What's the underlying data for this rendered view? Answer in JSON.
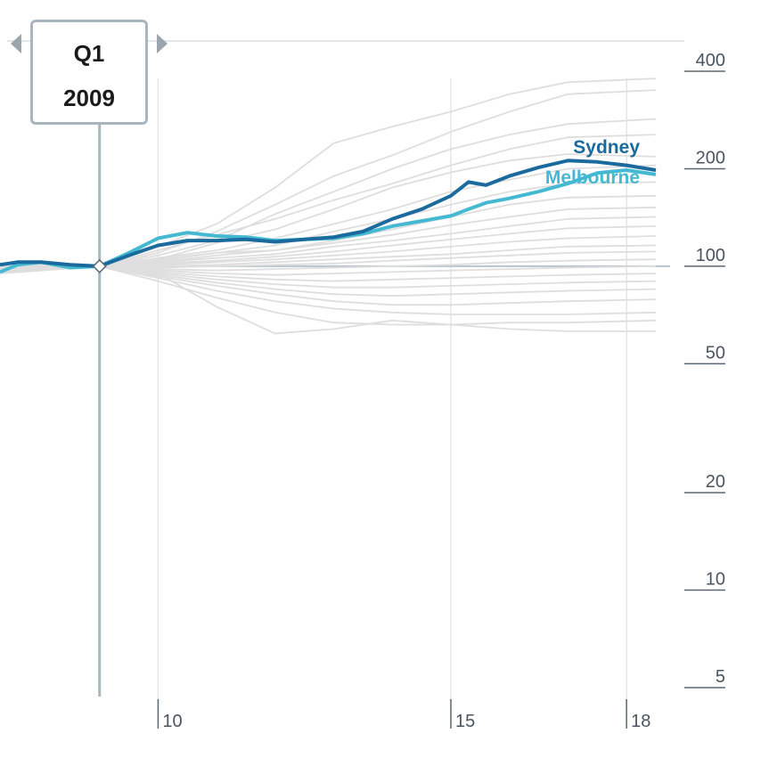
{
  "scrubber": {
    "quarter": "Q1",
    "year": "2009"
  },
  "chart_data": {
    "type": "line",
    "title": "",
    "xlabel": "",
    "ylabel": "",
    "y_scale": "log",
    "ylim": [
      5,
      400
    ],
    "xlim": [
      2007.3,
      2018.5
    ],
    "y_ticks": [
      400,
      200,
      100,
      50,
      20,
      10,
      5
    ],
    "y_tick_labels": [
      "400",
      "200",
      "100",
      "50",
      "20",
      "10",
      "5"
    ],
    "x_ticks": [
      2010,
      2015,
      2018
    ],
    "x_tick_labels": [
      "10",
      "15",
      "18"
    ],
    "baseline": 100,
    "colors": {
      "Sydney": "#1a6a9e",
      "Melbourne": "#45b8d2",
      "other": "#dedede",
      "baseline": "#b7c4cd"
    },
    "series": [
      {
        "name": "Sydney",
        "highlight": true,
        "x": [
          2007.3,
          2007.6,
          2008.0,
          2008.5,
          2009.0,
          2009.5,
          2010.0,
          2010.5,
          2011.0,
          2011.5,
          2012.0,
          2012.5,
          2013.0,
          2013.5,
          2014.0,
          2014.5,
          2015.0,
          2015.3,
          2015.6,
          2016.0,
          2016.5,
          2017.0,
          2017.5,
          2018.0,
          2018.5
        ],
        "y": [
          101,
          103,
          103,
          101,
          100,
          108,
          116,
          120,
          120,
          121,
          119,
          121,
          123,
          128,
          140,
          150,
          165,
          182,
          178,
          190,
          202,
          212,
          210,
          205,
          198
        ]
      },
      {
        "name": "Melbourne",
        "highlight": true,
        "x": [
          2007.3,
          2007.6,
          2008.0,
          2008.5,
          2009.0,
          2009.5,
          2010.0,
          2010.5,
          2011.0,
          2011.5,
          2012.0,
          2012.5,
          2013.0,
          2013.5,
          2014.0,
          2014.5,
          2015.0,
          2015.3,
          2015.6,
          2016.0,
          2016.5,
          2017.0,
          2017.5,
          2018.0,
          2018.5
        ],
        "y": [
          96,
          101,
          103,
          99,
          100,
          110,
          122,
          127,
          124,
          123,
          120,
          121,
          122,
          126,
          133,
          138,
          143,
          150,
          157,
          162,
          170,
          180,
          194,
          198,
          192
        ]
      },
      {
        "name": "",
        "x": [
          2007.3,
          2008.0,
          2009.0,
          2010.0,
          2011.0,
          2012.0,
          2013.0,
          2014.0,
          2015.0,
          2016.0,
          2017.0,
          2018.5
        ],
        "y": [
          98,
          102,
          100,
          115,
          135,
          175,
          240,
          270,
          300,
          340,
          370,
          380
        ]
      },
      {
        "name": "",
        "x": [
          2007.3,
          2008.0,
          2009.0,
          2010.0,
          2011.0,
          2012.0,
          2013.0,
          2014.0,
          2015.0,
          2016.0,
          2017.0,
          2018.5
        ],
        "y": [
          99,
          101,
          100,
          110,
          128,
          155,
          190,
          220,
          260,
          300,
          340,
          350
        ]
      },
      {
        "name": "",
        "x": [
          2007.3,
          2008.0,
          2009.0,
          2010.0,
          2011.0,
          2012.0,
          2013.0,
          2014.0,
          2015.0,
          2016.0,
          2017.0,
          2018.5
        ],
        "y": [
          97,
          102,
          100,
          108,
          120,
          145,
          170,
          200,
          230,
          255,
          275,
          285
        ]
      },
      {
        "name": "",
        "x": [
          2007.3,
          2008.0,
          2009.0,
          2010.0,
          2011.0,
          2012.0,
          2013.0,
          2014.0,
          2015.0,
          2016.0,
          2017.0,
          2018.5
        ],
        "y": [
          100,
          103,
          100,
          112,
          125,
          140,
          160,
          180,
          205,
          230,
          250,
          255
        ]
      },
      {
        "name": "",
        "x": [
          2007.3,
          2008.0,
          2009.0,
          2010.0,
          2011.0,
          2012.0,
          2013.0,
          2014.0,
          2015.0,
          2016.0,
          2017.0,
          2018.5
        ],
        "y": [
          96,
          99,
          100,
          105,
          118,
          130,
          150,
          175,
          195,
          212,
          222,
          218
        ]
      },
      {
        "name": "",
        "x": [
          2007.3,
          2008.0,
          2009.0,
          2010.0,
          2011.0,
          2012.0,
          2013.0,
          2014.0,
          2015.0,
          2016.0,
          2017.0,
          2018.5
        ],
        "y": [
          102,
          101,
          100,
          106,
          112,
          122,
          135,
          150,
          170,
          185,
          200,
          205
        ]
      },
      {
        "name": "",
        "x": [
          2007.3,
          2008.0,
          2009.0,
          2010.0,
          2011.0,
          2012.0,
          2013.0,
          2014.0,
          2015.0,
          2016.0,
          2017.0,
          2018.5
        ],
        "y": [
          98,
          100,
          100,
          104,
          110,
          116,
          128,
          140,
          155,
          170,
          180,
          182
        ]
      },
      {
        "name": "",
        "x": [
          2007.3,
          2008.0,
          2009.0,
          2010.0,
          2011.0,
          2012.0,
          2013.0,
          2014.0,
          2015.0,
          2016.0,
          2017.0,
          2018.5
        ],
        "y": [
          95,
          97,
          100,
          103,
          108,
          112,
          120,
          130,
          142,
          155,
          163,
          165
        ]
      },
      {
        "name": "",
        "x": [
          2007.3,
          2008.0,
          2009.0,
          2010.0,
          2011.0,
          2012.0,
          2013.0,
          2014.0,
          2015.0,
          2016.0,
          2017.0,
          2018.5
        ],
        "y": [
          99,
          101,
          100,
          105,
          110,
          112,
          118,
          125,
          134,
          142,
          150,
          152
        ]
      },
      {
        "name": "",
        "x": [
          2007.3,
          2008.0,
          2009.0,
          2010.0,
          2011.0,
          2012.0,
          2013.0,
          2014.0,
          2015.0,
          2016.0,
          2017.0,
          2018.5
        ],
        "y": [
          101,
          102,
          100,
          103,
          106,
          109,
          115,
          120,
          126,
          133,
          140,
          142
        ]
      },
      {
        "name": "",
        "x": [
          2007.3,
          2008.0,
          2009.0,
          2010.0,
          2011.0,
          2012.0,
          2013.0,
          2014.0,
          2015.0,
          2016.0,
          2017.0,
          2018.5
        ],
        "y": [
          97,
          100,
          100,
          102,
          104,
          107,
          111,
          116,
          121,
          126,
          131,
          133
        ]
      },
      {
        "name": "",
        "x": [
          2007.3,
          2008.0,
          2009.0,
          2010.0,
          2011.0,
          2012.0,
          2013.0,
          2014.0,
          2015.0,
          2016.0,
          2017.0,
          2018.5
        ],
        "y": [
          100,
          101,
          100,
          101,
          103,
          105,
          108,
          111,
          115,
          119,
          122,
          124
        ]
      },
      {
        "name": "",
        "x": [
          2007.3,
          2008.0,
          2009.0,
          2010.0,
          2011.0,
          2012.0,
          2013.0,
          2014.0,
          2015.0,
          2016.0,
          2017.0,
          2018.5
        ],
        "y": [
          98,
          99,
          100,
          100,
          101,
          103,
          105,
          107,
          109,
          112,
          115,
          116
        ]
      },
      {
        "name": "",
        "x": [
          2007.3,
          2008.0,
          2009.0,
          2010.0,
          2011.0,
          2012.0,
          2013.0,
          2014.0,
          2015.0,
          2016.0,
          2017.0,
          2018.5
        ],
        "y": [
          96,
          98,
          100,
          99,
          100,
          101,
          102,
          104,
          106,
          108,
          110,
          111
        ]
      },
      {
        "name": "",
        "x": [
          2007.3,
          2008.0,
          2009.0,
          2010.0,
          2011.0,
          2012.0,
          2013.0,
          2014.0,
          2015.0,
          2016.0,
          2017.0,
          2018.5
        ],
        "y": [
          99,
          100,
          100,
          98,
          97,
          98,
          99,
          100,
          101,
          103,
          104,
          105
        ]
      },
      {
        "name": "",
        "x": [
          2007.3,
          2008.0,
          2009.0,
          2010.0,
          2011.0,
          2012.0,
          2013.0,
          2014.0,
          2015.0,
          2016.0,
          2017.0,
          2018.5
        ],
        "y": [
          101,
          101,
          100,
          97,
          95,
          94,
          95,
          96,
          97,
          98,
          99,
          100
        ]
      },
      {
        "name": "",
        "x": [
          2007.3,
          2008.0,
          2009.0,
          2010.0,
          2011.0,
          2012.0,
          2013.0,
          2014.0,
          2015.0,
          2016.0,
          2017.0,
          2018.5
        ],
        "y": [
          100,
          99,
          100,
          96,
          93,
          91,
          90,
          91,
          92,
          93,
          94,
          95
        ]
      },
      {
        "name": "",
        "x": [
          2007.3,
          2008.0,
          2009.0,
          2010.0,
          2011.0,
          2012.0,
          2013.0,
          2014.0,
          2015.0,
          2016.0,
          2017.0,
          2018.5
        ],
        "y": [
          97,
          98,
          100,
          95,
          91,
          88,
          86,
          86,
          87,
          88,
          89,
          90
        ]
      },
      {
        "name": "",
        "x": [
          2007.3,
          2008.0,
          2009.0,
          2010.0,
          2011.0,
          2012.0,
          2013.0,
          2014.0,
          2015.0,
          2016.0,
          2017.0,
          2018.5
        ],
        "y": [
          99,
          100,
          100,
          94,
          89,
          85,
          82,
          81,
          82,
          83,
          84,
          85
        ]
      },
      {
        "name": "",
        "x": [
          2007.3,
          2008.0,
          2009.0,
          2010.0,
          2011.0,
          2012.0,
          2013.0,
          2014.0,
          2015.0,
          2016.0,
          2017.0,
          2018.5
        ],
        "y": [
          102,
          101,
          100,
          93,
          87,
          82,
          78,
          76,
          76,
          77,
          78,
          79
        ]
      },
      {
        "name": "",
        "x": [
          2007.3,
          2008.0,
          2009.0,
          2010.0,
          2011.0,
          2012.0,
          2013.0,
          2014.0,
          2015.0,
          2016.0,
          2017.0,
          2018.5
        ],
        "y": [
          98,
          99,
          100,
          92,
          84,
          78,
          74,
          72,
          71,
          71,
          71,
          72
        ]
      },
      {
        "name": "",
        "x": [
          2007.3,
          2008.0,
          2009.0,
          2010.0,
          2011.0,
          2012.0,
          2013.0,
          2014.0,
          2015.0,
          2016.0,
          2017.0,
          2018.5
        ],
        "y": [
          100,
          100,
          100,
          90,
          80,
          72,
          67,
          66,
          66,
          67,
          67,
          68
        ]
      },
      {
        "name": "",
        "x": [
          2007.3,
          2008.0,
          2009.0,
          2010.0,
          2011.0,
          2012.0,
          2013.0,
          2014.0,
          2015.0,
          2016.0,
          2017.0,
          2018.5
        ],
        "y": [
          99,
          101,
          100,
          95,
          75,
          62,
          64,
          68,
          66,
          64,
          63,
          63
        ]
      }
    ]
  }
}
